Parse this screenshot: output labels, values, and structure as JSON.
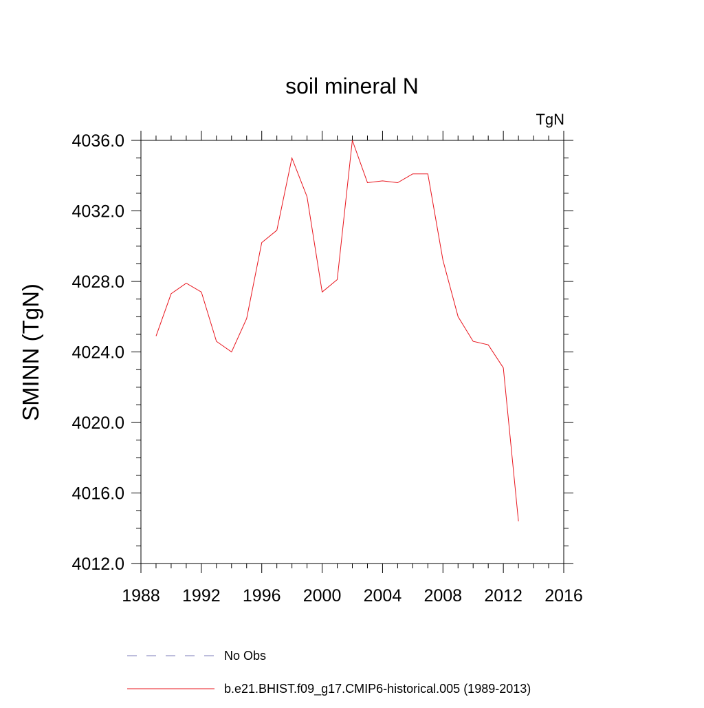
{
  "chart_data": {
    "type": "line",
    "title": "soil mineral N",
    "units_label": "TgN",
    "ylabel": "SMINN  (TgN)",
    "xlabel": "",
    "xlim": [
      1988,
      2016
    ],
    "ylim": [
      4012,
      4036
    ],
    "x_ticks": [
      1988,
      1992,
      1996,
      2000,
      2004,
      2008,
      2012,
      2016
    ],
    "x_tick_labels": [
      "1988",
      "1992",
      "1996",
      "2000",
      "2004",
      "2008",
      "2012",
      "2016"
    ],
    "x_minor_step": 1,
    "y_ticks": [
      4012,
      4016,
      4020,
      4024,
      4028,
      4032,
      4036
    ],
    "y_tick_labels": [
      "4012.0",
      "4016.0",
      "4020.0",
      "4024.0",
      "4028.0",
      "4032.0",
      "4036.0"
    ],
    "y_minor_step": 1,
    "series": [
      {
        "name": "b.e21.BHIST.f09_g17.CMIP6-historical.005 (1989-2013)",
        "color": "#e8141c",
        "style": "solid",
        "x": [
          1989,
          1990,
          1991,
          1992,
          1993,
          1994,
          1995,
          1996,
          1997,
          1998,
          1999,
          2000,
          2001,
          2002,
          2003,
          2004,
          2005,
          2006,
          2007,
          2008,
          2009,
          2010,
          2011,
          2012,
          2013
        ],
        "values": [
          4024.9,
          4027.3,
          4027.9,
          4027.4,
          4024.6,
          4024.0,
          4025.9,
          4030.2,
          4030.9,
          4035.0,
          4032.8,
          4027.4,
          4028.1,
          4036.0,
          4033.6,
          4033.7,
          4033.6,
          4034.1,
          4034.1,
          4029.2,
          4026.0,
          4024.6,
          4024.4,
          4023.1,
          4014.4
        ]
      }
    ],
    "legend": {
      "placement": "bottom",
      "entries": [
        {
          "label": "No Obs",
          "color": "#7b7bb8",
          "style": "dashed"
        },
        {
          "label": "b.e21.BHIST.f09_g17.CMIP6-historical.005 (1989-2013)",
          "color": "#e8141c",
          "style": "solid"
        }
      ]
    }
  }
}
